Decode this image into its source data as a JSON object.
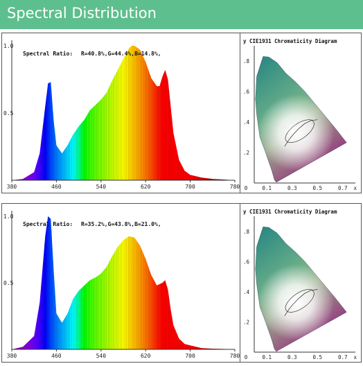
{
  "header": {
    "title": "Spectral Distribution"
  },
  "charts": [
    {
      "ratio_label": "Spectral Ratio:",
      "ratio_values": "R=40.8%,G=44.4%,B=14.8%,",
      "cie_title": "CIE1931 Chromaticity Diagram",
      "cie_x_label": "x",
      "cie_y_label": "y",
      "cie_x_ticks": [
        "0",
        "0.1",
        "0.3",
        "0.5",
        "0.7"
      ],
      "cie_y_ticks": [
        ".8",
        ".6",
        ".4",
        ".2"
      ]
    },
    {
      "ratio_label": "Spectral Ratio:",
      "ratio_values": "R=35.2%,G=43.8%,B=21.0%,",
      "cie_title": "CIE1931 Chromaticity Diagram",
      "cie_x_label": "x",
      "cie_y_label": "y",
      "cie_x_ticks": [
        "0",
        "0.1",
        "0.3",
        "0.5",
        "0.7"
      ],
      "cie_y_ticks": [
        ".8",
        ".6",
        ".4",
        ".2"
      ]
    }
  ],
  "chart_data": [
    {
      "type": "area",
      "title": "",
      "xlabel": "",
      "ylabel": "",
      "xlim": [
        380,
        780
      ],
      "ylim": [
        0,
        1.0
      ],
      "x_ticks": [
        "380",
        "460",
        "540",
        "620",
        "700",
        "780"
      ],
      "y_ticks": [
        "1.0",
        "0.5"
      ],
      "x": [
        380,
        400,
        420,
        430,
        440,
        445,
        450,
        455,
        460,
        470,
        480,
        490,
        500,
        510,
        520,
        530,
        540,
        550,
        560,
        570,
        580,
        590,
        595,
        600,
        610,
        620,
        630,
        640,
        645,
        650,
        655,
        660,
        665,
        670,
        680,
        690,
        700,
        720,
        740,
        760,
        780
      ],
      "y": [
        0.0,
        0.01,
        0.06,
        0.2,
        0.55,
        0.72,
        0.73,
        0.45,
        0.26,
        0.2,
        0.26,
        0.34,
        0.4,
        0.45,
        0.52,
        0.56,
        0.6,
        0.65,
        0.74,
        0.82,
        0.9,
        0.98,
        1.0,
        1.0,
        0.97,
        0.88,
        0.76,
        0.7,
        0.7,
        0.77,
        0.82,
        0.75,
        0.55,
        0.35,
        0.15,
        0.07,
        0.04,
        0.02,
        0.01,
        0.005,
        0.0
      ]
    },
    {
      "type": "area",
      "title": "",
      "xlabel": "",
      "ylabel": "",
      "xlim": [
        380,
        780
      ],
      "ylim": [
        0,
        1.0
      ],
      "x_ticks": [
        "380",
        "460",
        "540",
        "620",
        "700",
        "780"
      ],
      "y_ticks": [
        "1.0",
        "0.5"
      ],
      "x": [
        380,
        400,
        420,
        430,
        440,
        445,
        450,
        455,
        460,
        470,
        480,
        490,
        500,
        510,
        520,
        530,
        540,
        550,
        560,
        570,
        580,
        590,
        600,
        610,
        620,
        630,
        640,
        650,
        655,
        660,
        665,
        670,
        680,
        690,
        700,
        720,
        740,
        760,
        780
      ],
      "y": [
        0.0,
        0.02,
        0.1,
        0.35,
        0.85,
        1.0,
        0.98,
        0.6,
        0.27,
        0.2,
        0.27,
        0.38,
        0.44,
        0.48,
        0.52,
        0.54,
        0.57,
        0.62,
        0.7,
        0.77,
        0.82,
        0.85,
        0.84,
        0.78,
        0.68,
        0.56,
        0.48,
        0.5,
        0.52,
        0.45,
        0.3,
        0.18,
        0.08,
        0.04,
        0.03,
        0.01,
        0.005,
        0.003,
        0.0
      ]
    }
  ]
}
